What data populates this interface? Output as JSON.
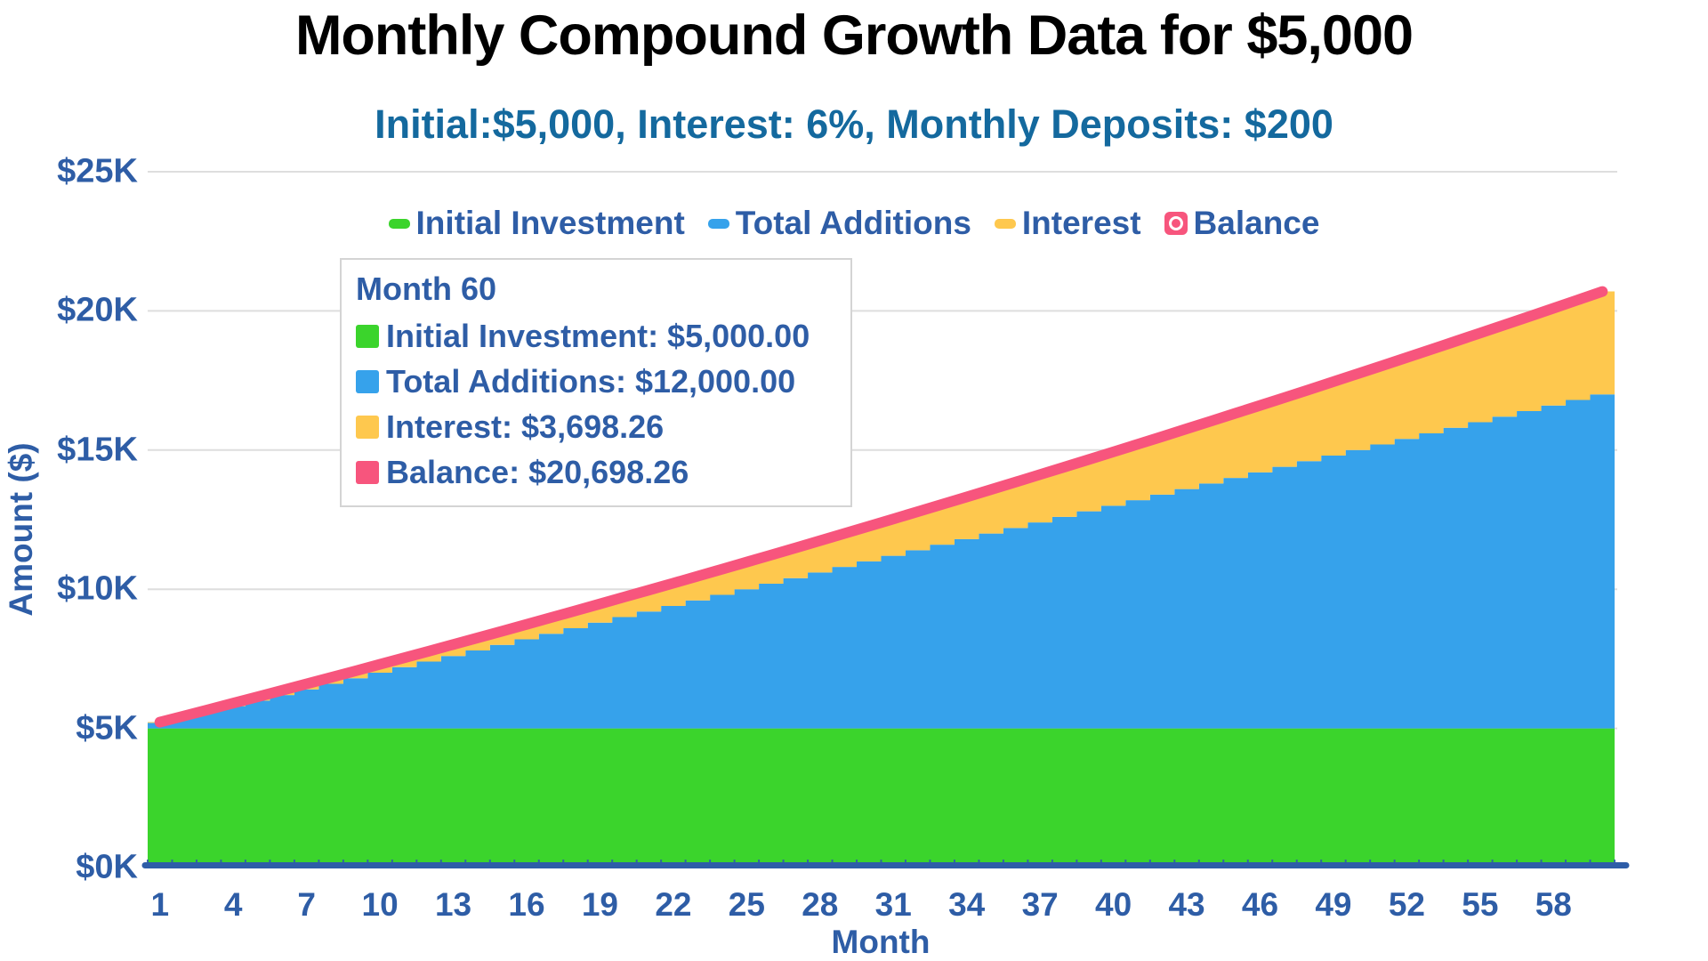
{
  "title": "Monthly Compound Growth Data for $5,000",
  "subtitle": "Initial:$5,000, Interest: 6%, Monthly Deposits: $200",
  "colors": {
    "initial_investment": "#3BD42C",
    "total_additions": "#36A2EB",
    "interest": "#FEC84E",
    "balance": "#F7557D",
    "label_text": "#2E5DA6",
    "subtitle_text": "#14699E",
    "axis_line": "#2E5DA8",
    "gridline": "#DEDEDE",
    "title_text": "#000000",
    "tooltip_border": "#D4D4D4",
    "tooltip_background": "#FFFFFF"
  },
  "legend": {
    "items": [
      {
        "label": "Initial Investment",
        "color": "#3BD42C",
        "marker": "bar"
      },
      {
        "label": "Total Additions",
        "color": "#36A2EB",
        "marker": "bar"
      },
      {
        "label": "Interest",
        "color": "#FEC84E",
        "marker": "bar"
      },
      {
        "label": "Balance",
        "color": "#F7557D",
        "marker": "ring-square"
      }
    ]
  },
  "tooltip": {
    "header": "Month 60",
    "rows": [
      {
        "name": "Initial Investment",
        "value": "$5,000.00",
        "color": "#3BD42C"
      },
      {
        "name": "Total Additions",
        "value": "$12,000.00",
        "color": "#36A2EB"
      },
      {
        "name": "Interest",
        "value": "$3,698.26",
        "color": "#FEC84E"
      },
      {
        "name": "Balance",
        "value": "$20,698.26",
        "color": "#F7557D"
      }
    ]
  },
  "axes": {
    "y": {
      "title": "Amount ($)",
      "ticks": [
        {
          "label": "$25K",
          "value": 25000
        },
        {
          "label": "$20K",
          "value": 20000
        },
        {
          "label": "$15K",
          "value": 15000
        },
        {
          "label": "$10K",
          "value": 10000
        },
        {
          "label": "$5K",
          "value": 5000
        },
        {
          "label": "$0K",
          "value": 0
        }
      ]
    },
    "x": {
      "title": "Month",
      "tick_values": [
        1,
        4,
        7,
        10,
        13,
        16,
        19,
        22,
        25,
        28,
        31,
        34,
        37,
        40,
        43,
        46,
        49,
        52,
        55,
        58
      ]
    }
  },
  "chart_data": {
    "type": "bar",
    "subtype": "stacked-monthly-columns-with-balance-line",
    "xlabel": "Month",
    "ylabel": "Amount ($)",
    "ylim": [
      0,
      25000
    ],
    "num_months": 60,
    "initial_investment": 5000,
    "monthly_deposit": 200,
    "annual_interest_rate_pct": 6,
    "series": [
      {
        "name": "Initial Investment",
        "type": "bar",
        "constant_value": 5000
      },
      {
        "name": "Total Additions",
        "type": "bar",
        "rule": "200 * month"
      },
      {
        "name": "Interest",
        "type": "bar",
        "values": [
          25.0,
          51.13,
          78.38,
          106.77,
          136.31,
          166.99,
          198.82,
          231.82,
          265.98,
          301.31,
          337.81,
          375.5,
          414.38,
          454.45,
          495.72,
          538.2,
          581.89,
          626.8,
          672.94,
          720.3,
          768.9,
          818.75,
          869.84,
          922.19,
          975.8,
          1030.68,
          1086.83,
          1144.27,
          1202.99,
          1263.0,
          1324.32,
          1386.94,
          1450.88,
          1516.13,
          1582.71,
          1650.62,
          1719.88,
          1790.48,
          1862.43,
          1935.74,
          2010.42,
          2086.47,
          2163.9,
          2242.72,
          2322.94,
          2404.55,
          2487.57,
          2572.01,
          2657.87,
          2745.16,
          2833.89,
          2924.06,
          3015.68,
          3108.76,
          3203.3,
          3299.32,
          3396.81,
          3495.8,
          3596.28,
          3698.26
        ]
      },
      {
        "name": "Balance",
        "type": "line",
        "values": [
          5225.0,
          5451.13,
          5678.38,
          5906.77,
          6136.31,
          6366.99,
          6598.82,
          6831.82,
          7065.98,
          7301.31,
          7537.81,
          7775.5,
          8014.38,
          8254.45,
          8495.72,
          8738.2,
          8981.89,
          9226.8,
          9472.94,
          9720.3,
          9968.9,
          10218.75,
          10469.84,
          10722.19,
          10975.8,
          11230.68,
          11486.83,
          11744.27,
          12002.99,
          12263.0,
          12524.32,
          12786.94,
          13050.88,
          13316.13,
          13582.71,
          13850.62,
          14119.88,
          14390.48,
          14662.43,
          14935.74,
          15210.42,
          15486.47,
          15763.9,
          16042.72,
          16322.94,
          16604.55,
          16887.57,
          17172.01,
          17457.87,
          17745.16,
          18033.89,
          18324.06,
          18615.68,
          18908.76,
          19203.3,
          19499.32,
          19796.81,
          20095.8,
          20396.28,
          20698.26
        ]
      }
    ]
  }
}
